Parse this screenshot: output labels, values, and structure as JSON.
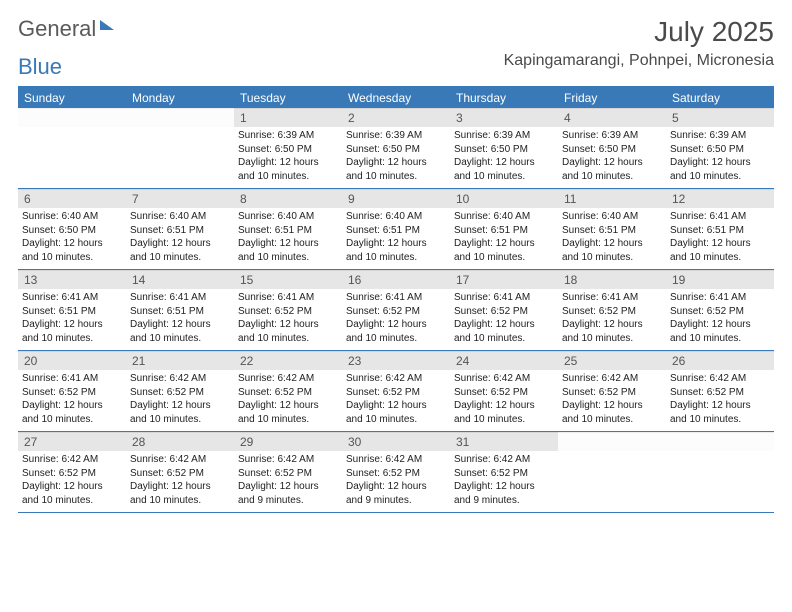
{
  "logo": {
    "text1": "General",
    "text2": "Blue"
  },
  "title": "July 2025",
  "location": "Kapingamarangi, Pohnpei, Micronesia",
  "colors": {
    "accent": "#3a79b7",
    "band": "#e6e6e6",
    "text": "#4a4a4a"
  },
  "weekdays": [
    "Sunday",
    "Monday",
    "Tuesday",
    "Wednesday",
    "Thursday",
    "Friday",
    "Saturday"
  ],
  "weeks": [
    [
      {
        "n": "",
        "sr": "",
        "ss": "",
        "dl": ""
      },
      {
        "n": "",
        "sr": "",
        "ss": "",
        "dl": ""
      },
      {
        "n": "1",
        "sr": "Sunrise: 6:39 AM",
        "ss": "Sunset: 6:50 PM",
        "dl": "Daylight: 12 hours and 10 minutes."
      },
      {
        "n": "2",
        "sr": "Sunrise: 6:39 AM",
        "ss": "Sunset: 6:50 PM",
        "dl": "Daylight: 12 hours and 10 minutes."
      },
      {
        "n": "3",
        "sr": "Sunrise: 6:39 AM",
        "ss": "Sunset: 6:50 PM",
        "dl": "Daylight: 12 hours and 10 minutes."
      },
      {
        "n": "4",
        "sr": "Sunrise: 6:39 AM",
        "ss": "Sunset: 6:50 PM",
        "dl": "Daylight: 12 hours and 10 minutes."
      },
      {
        "n": "5",
        "sr": "Sunrise: 6:39 AM",
        "ss": "Sunset: 6:50 PM",
        "dl": "Daylight: 12 hours and 10 minutes."
      }
    ],
    [
      {
        "n": "6",
        "sr": "Sunrise: 6:40 AM",
        "ss": "Sunset: 6:50 PM",
        "dl": "Daylight: 12 hours and 10 minutes."
      },
      {
        "n": "7",
        "sr": "Sunrise: 6:40 AM",
        "ss": "Sunset: 6:51 PM",
        "dl": "Daylight: 12 hours and 10 minutes."
      },
      {
        "n": "8",
        "sr": "Sunrise: 6:40 AM",
        "ss": "Sunset: 6:51 PM",
        "dl": "Daylight: 12 hours and 10 minutes."
      },
      {
        "n": "9",
        "sr": "Sunrise: 6:40 AM",
        "ss": "Sunset: 6:51 PM",
        "dl": "Daylight: 12 hours and 10 minutes."
      },
      {
        "n": "10",
        "sr": "Sunrise: 6:40 AM",
        "ss": "Sunset: 6:51 PM",
        "dl": "Daylight: 12 hours and 10 minutes."
      },
      {
        "n": "11",
        "sr": "Sunrise: 6:40 AM",
        "ss": "Sunset: 6:51 PM",
        "dl": "Daylight: 12 hours and 10 minutes."
      },
      {
        "n": "12",
        "sr": "Sunrise: 6:41 AM",
        "ss": "Sunset: 6:51 PM",
        "dl": "Daylight: 12 hours and 10 minutes."
      }
    ],
    [
      {
        "n": "13",
        "sr": "Sunrise: 6:41 AM",
        "ss": "Sunset: 6:51 PM",
        "dl": "Daylight: 12 hours and 10 minutes."
      },
      {
        "n": "14",
        "sr": "Sunrise: 6:41 AM",
        "ss": "Sunset: 6:51 PM",
        "dl": "Daylight: 12 hours and 10 minutes."
      },
      {
        "n": "15",
        "sr": "Sunrise: 6:41 AM",
        "ss": "Sunset: 6:52 PM",
        "dl": "Daylight: 12 hours and 10 minutes."
      },
      {
        "n": "16",
        "sr": "Sunrise: 6:41 AM",
        "ss": "Sunset: 6:52 PM",
        "dl": "Daylight: 12 hours and 10 minutes."
      },
      {
        "n": "17",
        "sr": "Sunrise: 6:41 AM",
        "ss": "Sunset: 6:52 PM",
        "dl": "Daylight: 12 hours and 10 minutes."
      },
      {
        "n": "18",
        "sr": "Sunrise: 6:41 AM",
        "ss": "Sunset: 6:52 PM",
        "dl": "Daylight: 12 hours and 10 minutes."
      },
      {
        "n": "19",
        "sr": "Sunrise: 6:41 AM",
        "ss": "Sunset: 6:52 PM",
        "dl": "Daylight: 12 hours and 10 minutes."
      }
    ],
    [
      {
        "n": "20",
        "sr": "Sunrise: 6:41 AM",
        "ss": "Sunset: 6:52 PM",
        "dl": "Daylight: 12 hours and 10 minutes."
      },
      {
        "n": "21",
        "sr": "Sunrise: 6:42 AM",
        "ss": "Sunset: 6:52 PM",
        "dl": "Daylight: 12 hours and 10 minutes."
      },
      {
        "n": "22",
        "sr": "Sunrise: 6:42 AM",
        "ss": "Sunset: 6:52 PM",
        "dl": "Daylight: 12 hours and 10 minutes."
      },
      {
        "n": "23",
        "sr": "Sunrise: 6:42 AM",
        "ss": "Sunset: 6:52 PM",
        "dl": "Daylight: 12 hours and 10 minutes."
      },
      {
        "n": "24",
        "sr": "Sunrise: 6:42 AM",
        "ss": "Sunset: 6:52 PM",
        "dl": "Daylight: 12 hours and 10 minutes."
      },
      {
        "n": "25",
        "sr": "Sunrise: 6:42 AM",
        "ss": "Sunset: 6:52 PM",
        "dl": "Daylight: 12 hours and 10 minutes."
      },
      {
        "n": "26",
        "sr": "Sunrise: 6:42 AM",
        "ss": "Sunset: 6:52 PM",
        "dl": "Daylight: 12 hours and 10 minutes."
      }
    ],
    [
      {
        "n": "27",
        "sr": "Sunrise: 6:42 AM",
        "ss": "Sunset: 6:52 PM",
        "dl": "Daylight: 12 hours and 10 minutes."
      },
      {
        "n": "28",
        "sr": "Sunrise: 6:42 AM",
        "ss": "Sunset: 6:52 PM",
        "dl": "Daylight: 12 hours and 10 minutes."
      },
      {
        "n": "29",
        "sr": "Sunrise: 6:42 AM",
        "ss": "Sunset: 6:52 PM",
        "dl": "Daylight: 12 hours and 9 minutes."
      },
      {
        "n": "30",
        "sr": "Sunrise: 6:42 AM",
        "ss": "Sunset: 6:52 PM",
        "dl": "Daylight: 12 hours and 9 minutes."
      },
      {
        "n": "31",
        "sr": "Sunrise: 6:42 AM",
        "ss": "Sunset: 6:52 PM",
        "dl": "Daylight: 12 hours and 9 minutes."
      },
      {
        "n": "",
        "sr": "",
        "ss": "",
        "dl": ""
      },
      {
        "n": "",
        "sr": "",
        "ss": "",
        "dl": ""
      }
    ]
  ]
}
